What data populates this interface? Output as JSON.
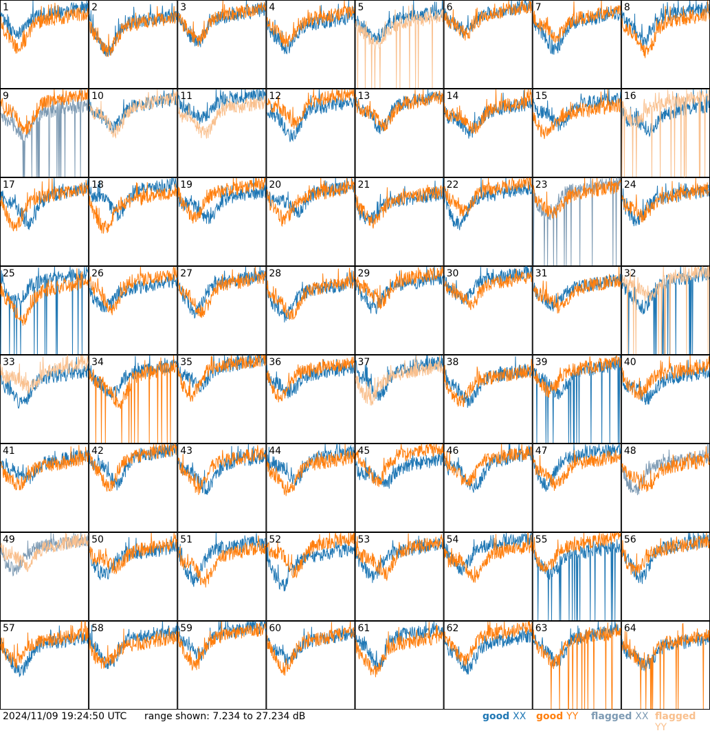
{
  "chart_data": {
    "type": "line",
    "panels": 64,
    "panel_labels": [
      "1",
      "2",
      "3",
      "4",
      "5",
      "6",
      "7",
      "8",
      "9",
      "10",
      "11",
      "12",
      "13",
      "14",
      "15",
      "16",
      "17",
      "18",
      "19",
      "20",
      "21",
      "22",
      "23",
      "24",
      "25",
      "26",
      "27",
      "28",
      "29",
      "30",
      "31",
      "32",
      "33",
      "34",
      "35",
      "36",
      "37",
      "38",
      "39",
      "40",
      "41",
      "42",
      "43",
      "44",
      "45",
      "46",
      "47",
      "48",
      "49",
      "50",
      "51",
      "52",
      "53",
      "54",
      "55",
      "56",
      "57",
      "58",
      "59",
      "60",
      "61",
      "62",
      "63",
      "64"
    ],
    "ylim": [
      7.234,
      27.234
    ],
    "yunit": "dB",
    "grid": false,
    "series_styles": [
      {
        "name": "good XX",
        "color": "#1f77b4"
      },
      {
        "name": "good YY",
        "color": "#ff7f0e"
      },
      {
        "name": "flagged XX",
        "color": "#7d9ab3"
      },
      {
        "name": "flagged YY",
        "color": "#f9c08e"
      }
    ],
    "flagged_xx_panels": [
      9,
      23,
      48,
      49
    ],
    "flagged_yy_panels": [
      5,
      10,
      11,
      16,
      32,
      33,
      37,
      49
    ],
    "dropout_xx_panels": [
      9,
      23,
      25,
      32,
      39,
      55
    ],
    "dropout_yy_panels": [
      5,
      16,
      32,
      34,
      63,
      64
    ]
  },
  "footer": {
    "timestamp": "2024/11/09 19:24:50 UTC",
    "range_text": "range shown: 7.234 to 27.234 dB"
  },
  "legend": {
    "good_xx": {
      "word": "good",
      "pol": "XX",
      "color": "#1f77b4"
    },
    "good_yy": {
      "word": "good",
      "pol": "YY",
      "color": "#ff7f0e"
    },
    "flagged_xx": {
      "word": "flagged",
      "pol": "XX",
      "color": "#7d9ab3"
    },
    "flagged_yy": {
      "word": "flagged",
      "pol": "YY",
      "color": "#f9c08e"
    }
  }
}
